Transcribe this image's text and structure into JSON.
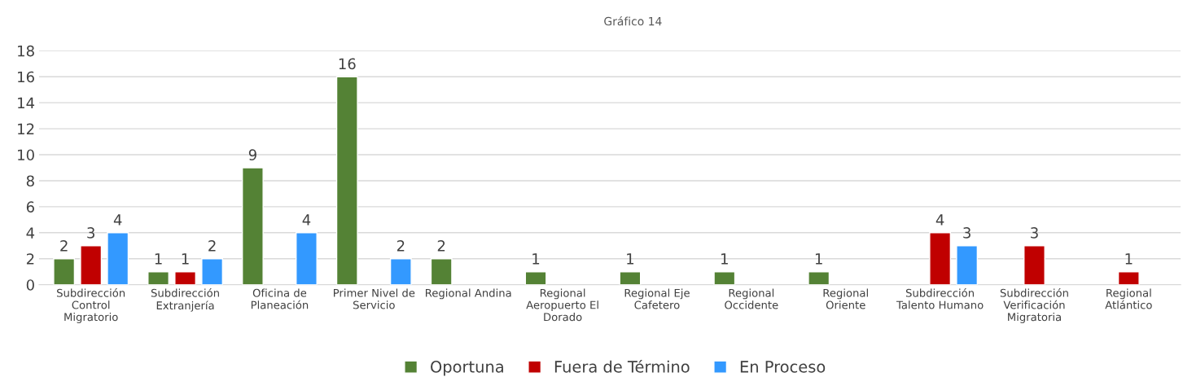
{
  "chart_data": {
    "type": "bar",
    "subtitle": "Gráfico 14",
    "categories": [
      "Subdirección Control Migratorio",
      "Subdirección Extranjería",
      "Oficina de Planeación",
      "Primer Nivel de Servicio",
      "Regional Andina",
      "Regional Aeropuerto El Dorado",
      "Regional Eje Cafetero",
      "Regional Occidente",
      "Regional Oriente",
      "Subdirección Talento Humano",
      "Subdirección Verificación Migratoria",
      "Regional Atlántico"
    ],
    "series": [
      {
        "name": "Oportuna",
        "color": "#548235",
        "values": [
          2,
          1,
          9,
          16,
          2,
          1,
          1,
          1,
          1,
          null,
          null,
          null
        ]
      },
      {
        "name": "Fuera de Término",
        "color": "#c00000",
        "values": [
          3,
          1,
          null,
          null,
          null,
          null,
          null,
          null,
          null,
          4,
          3,
          1
        ]
      },
      {
        "name": "En Proceso",
        "color": "#3399ff",
        "values": [
          4,
          2,
          4,
          2,
          null,
          null,
          null,
          null,
          null,
          3,
          null,
          null
        ]
      }
    ],
    "ylim": [
      0,
      18
    ],
    "yticks": [
      0,
      2,
      4,
      6,
      8,
      10,
      12,
      14,
      16,
      18
    ],
    "grid": "y",
    "legend": "bottom",
    "data_labels": true
  }
}
